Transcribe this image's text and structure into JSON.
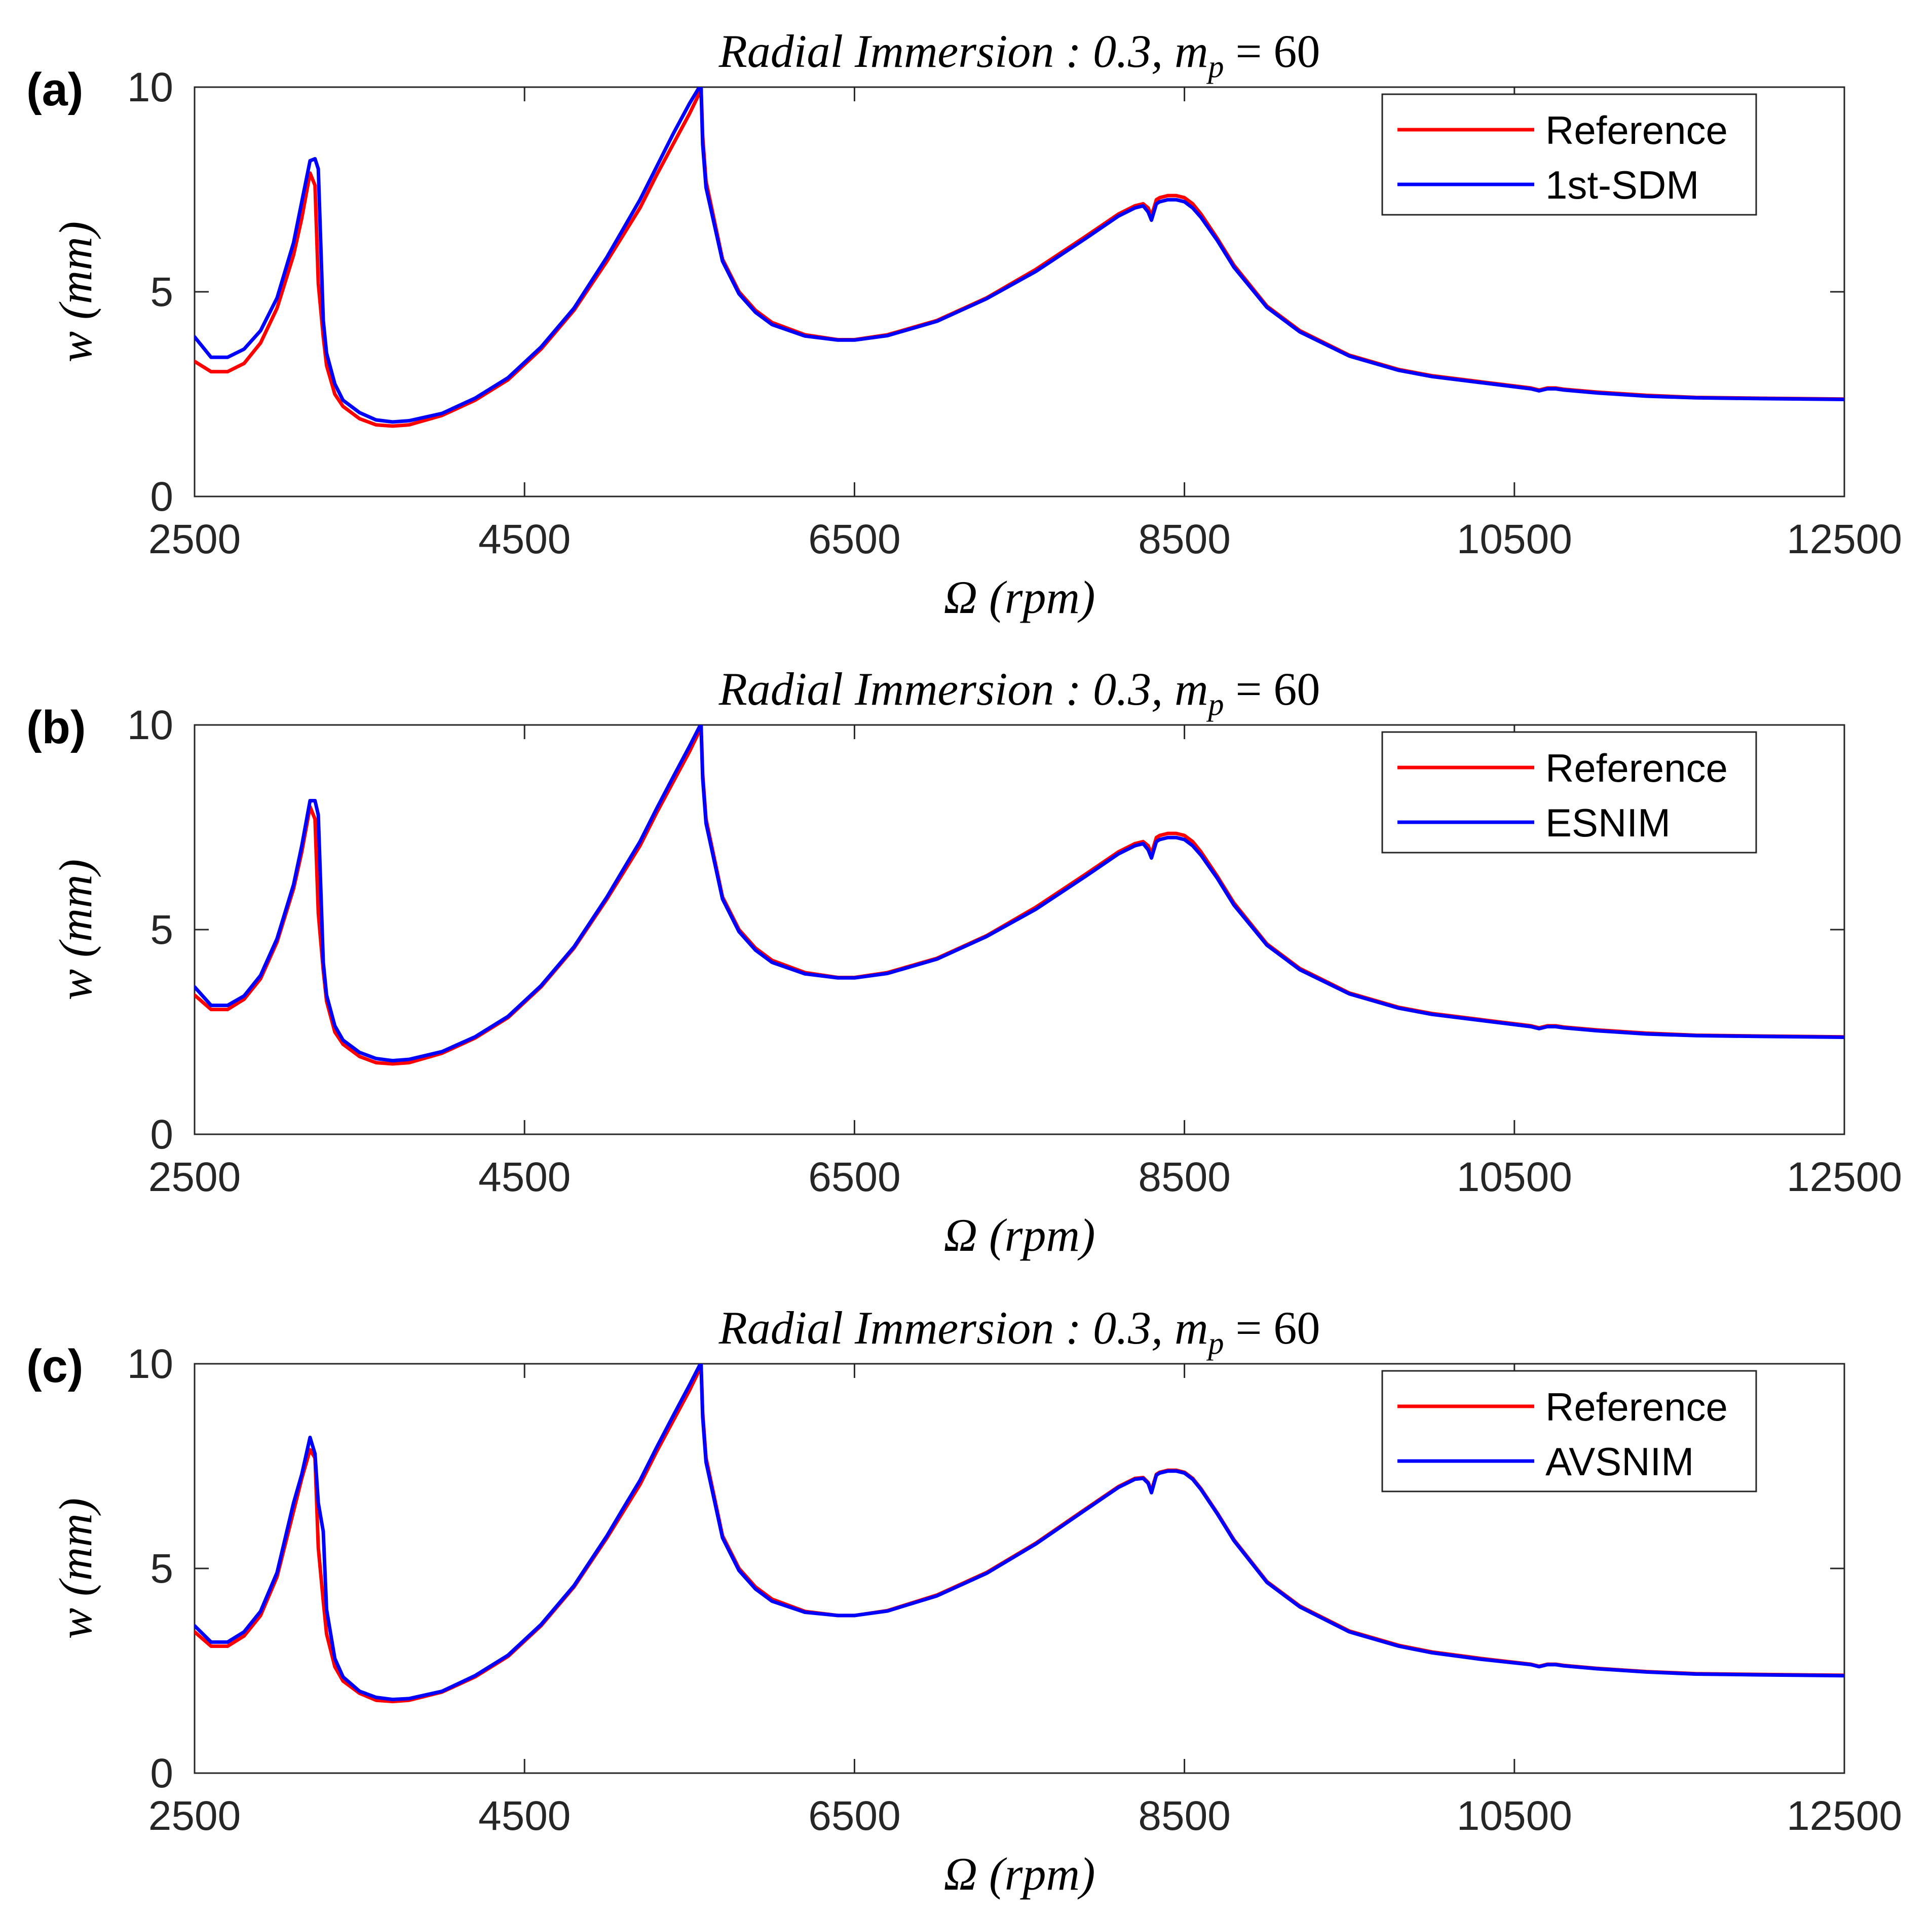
{
  "colors": {
    "reference": "#ff0000",
    "method": "#0000ff",
    "axis": "#262626"
  },
  "chart_data": [
    {
      "type": "line",
      "panel_label": "(a)",
      "title": "Radial Immersion :  0.3,   m",
      "title_sub": "p",
      "title_suffix": " = 60",
      "xlabel": "Ω (rpm)",
      "ylabel": "w (mm)",
      "xlim": [
        2500,
        12500
      ],
      "ylim": [
        0,
        10
      ],
      "xticks": [
        "2500",
        "4500",
        "6500",
        "8500",
        "10500",
        "12500"
      ],
      "yticks": [
        "0",
        "5",
        "10"
      ],
      "legend_position": "top-right",
      "series": [
        {
          "name": "Reference",
          "color": "#ff0000",
          "x": [
            2500,
            2600,
            2700,
            2800,
            2900,
            3000,
            3100,
            3150,
            3200,
            3230,
            3250,
            3280,
            3300,
            3350,
            3400,
            3500,
            3600,
            3700,
            3800,
            4000,
            4200,
            4400,
            4600,
            4800,
            5000,
            5100,
            5200,
            5300,
            5400,
            5500,
            5560,
            5570,
            5580,
            5600,
            5700,
            5800,
            5900,
            6000,
            6200,
            6400,
            6500,
            6700,
            7000,
            7300,
            7600,
            7900,
            8100,
            8200,
            8250,
            8280,
            8300,
            8330,
            8350,
            8400,
            8450,
            8500,
            8550,
            8600,
            8700,
            8800,
            9000,
            9200,
            9500,
            9800,
            10000,
            10300,
            10600,
            10650,
            10700,
            10750,
            10800,
            11000,
            11300,
            11600,
            12000,
            12500
          ],
          "y": [
            3.3,
            3.05,
            3.05,
            3.25,
            3.75,
            4.6,
            5.9,
            6.8,
            7.9,
            7.6,
            5.2,
            3.9,
            3.2,
            2.5,
            2.2,
            1.9,
            1.75,
            1.72,
            1.75,
            1.98,
            2.35,
            2.85,
            3.6,
            4.55,
            5.75,
            6.4,
            7.05,
            7.85,
            8.6,
            9.35,
            9.85,
            10.0,
            8.8,
            7.7,
            5.8,
            5.0,
            4.55,
            4.25,
            3.95,
            3.83,
            3.83,
            3.95,
            4.3,
            4.85,
            5.55,
            6.35,
            6.9,
            7.1,
            7.15,
            7.05,
            6.85,
            7.25,
            7.3,
            7.35,
            7.35,
            7.3,
            7.15,
            6.9,
            6.3,
            5.65,
            4.65,
            4.05,
            3.45,
            3.1,
            2.95,
            2.8,
            2.65,
            2.6,
            2.65,
            2.65,
            2.62,
            2.55,
            2.47,
            2.42,
            2.4,
            2.38
          ]
        },
        {
          "name": "1st-SDM",
          "color": "#0000ff",
          "x": [
            2500,
            2600,
            2700,
            2800,
            2900,
            3000,
            3100,
            3150,
            3200,
            3230,
            3250,
            3280,
            3300,
            3350,
            3400,
            3500,
            3600,
            3700,
            3800,
            4000,
            4200,
            4400,
            4600,
            4800,
            5000,
            5100,
            5200,
            5300,
            5400,
            5500,
            5560,
            5570,
            5580,
            5600,
            5700,
            5800,
            5900,
            6000,
            6200,
            6400,
            6500,
            6700,
            7000,
            7300,
            7600,
            7900,
            8100,
            8200,
            8250,
            8280,
            8300,
            8330,
            8350,
            8400,
            8450,
            8500,
            8550,
            8600,
            8700,
            8800,
            9000,
            9200,
            9500,
            9800,
            10000,
            10300,
            10600,
            10650,
            10700,
            10750,
            10800,
            11000,
            11300,
            11600,
            12000,
            12500
          ],
          "y": [
            3.9,
            3.4,
            3.4,
            3.6,
            4.05,
            4.85,
            6.2,
            7.2,
            8.2,
            8.25,
            8.0,
            4.3,
            3.5,
            2.75,
            2.35,
            2.05,
            1.87,
            1.82,
            1.85,
            2.03,
            2.4,
            2.9,
            3.65,
            4.6,
            5.85,
            6.55,
            7.25,
            8.05,
            8.85,
            9.6,
            10.0,
            10.0,
            8.6,
            7.55,
            5.75,
            4.95,
            4.5,
            4.2,
            3.92,
            3.82,
            3.82,
            3.93,
            4.28,
            4.83,
            5.5,
            6.3,
            6.85,
            7.05,
            7.1,
            6.95,
            6.75,
            7.15,
            7.2,
            7.25,
            7.25,
            7.2,
            7.05,
            6.82,
            6.25,
            5.6,
            4.62,
            4.02,
            3.43,
            3.08,
            2.93,
            2.78,
            2.63,
            2.58,
            2.63,
            2.63,
            2.6,
            2.53,
            2.45,
            2.41,
            2.39,
            2.37
          ]
        }
      ]
    },
    {
      "type": "line",
      "panel_label": "(b)",
      "title": "Radial Immersion :  0.3,   m",
      "title_sub": "p",
      "title_suffix": " = 60",
      "xlabel": "Ω (rpm)",
      "ylabel": "w (mm)",
      "xlim": [
        2500,
        12500
      ],
      "ylim": [
        0,
        10
      ],
      "xticks": [
        "2500",
        "4500",
        "6500",
        "8500",
        "10500",
        "12500"
      ],
      "yticks": [
        "0",
        "5",
        "10"
      ],
      "legend_position": "top-right",
      "series": [
        {
          "name": "Reference",
          "color": "#ff0000",
          "x": [
            2500,
            2600,
            2700,
            2800,
            2900,
            3000,
            3100,
            3150,
            3200,
            3230,
            3250,
            3280,
            3300,
            3350,
            3400,
            3500,
            3600,
            3700,
            3800,
            4000,
            4200,
            4400,
            4600,
            4800,
            5000,
            5100,
            5200,
            5300,
            5400,
            5500,
            5560,
            5570,
            5580,
            5600,
            5700,
            5800,
            5900,
            6000,
            6200,
            6400,
            6500,
            6700,
            7000,
            7300,
            7600,
            7900,
            8100,
            8200,
            8250,
            8280,
            8300,
            8330,
            8350,
            8400,
            8450,
            8500,
            8550,
            8600,
            8700,
            8800,
            9000,
            9200,
            9500,
            9800,
            10000,
            10300,
            10600,
            10650,
            10700,
            10750,
            10800,
            11000,
            11300,
            11600,
            12000,
            12500
          ],
          "y": [
            3.4,
            3.05,
            3.05,
            3.3,
            3.8,
            4.7,
            6.0,
            6.9,
            8.0,
            7.7,
            5.4,
            4.0,
            3.25,
            2.5,
            2.2,
            1.9,
            1.75,
            1.72,
            1.75,
            1.98,
            2.35,
            2.85,
            3.6,
            4.55,
            5.75,
            6.4,
            7.05,
            7.85,
            8.6,
            9.35,
            9.85,
            10.0,
            8.8,
            7.7,
            5.8,
            5.0,
            4.55,
            4.25,
            3.95,
            3.83,
            3.83,
            3.95,
            4.3,
            4.85,
            5.55,
            6.35,
            6.9,
            7.1,
            7.15,
            7.05,
            6.85,
            7.25,
            7.3,
            7.35,
            7.35,
            7.3,
            7.15,
            6.9,
            6.3,
            5.65,
            4.65,
            4.05,
            3.45,
            3.1,
            2.95,
            2.8,
            2.65,
            2.6,
            2.65,
            2.65,
            2.62,
            2.55,
            2.47,
            2.42,
            2.4,
            2.38
          ]
        },
        {
          "name": "ESNIM",
          "color": "#0000ff",
          "x": [
            2500,
            2600,
            2700,
            2800,
            2900,
            3000,
            3100,
            3150,
            3200,
            3230,
            3250,
            3280,
            3300,
            3350,
            3400,
            3500,
            3600,
            3700,
            3800,
            4000,
            4200,
            4400,
            4600,
            4800,
            5000,
            5100,
            5200,
            5300,
            5400,
            5500,
            5560,
            5570,
            5580,
            5600,
            5700,
            5800,
            5900,
            6000,
            6200,
            6400,
            6500,
            6700,
            7000,
            7300,
            7600,
            7900,
            8100,
            8200,
            8250,
            8280,
            8300,
            8330,
            8350,
            8400,
            8450,
            8500,
            8550,
            8600,
            8700,
            8800,
            9000,
            9200,
            9500,
            9800,
            10000,
            10300,
            10600,
            10650,
            10700,
            10750,
            10800,
            11000,
            11300,
            11600,
            12000,
            12500
          ],
          "y": [
            3.6,
            3.15,
            3.15,
            3.38,
            3.88,
            4.78,
            6.1,
            7.05,
            8.15,
            8.15,
            7.8,
            4.2,
            3.4,
            2.65,
            2.3,
            2.0,
            1.85,
            1.8,
            1.83,
            2.02,
            2.38,
            2.88,
            3.63,
            4.58,
            5.8,
            6.48,
            7.15,
            7.95,
            8.72,
            9.48,
            9.95,
            10.0,
            8.7,
            7.6,
            5.75,
            4.95,
            4.5,
            4.2,
            3.92,
            3.82,
            3.82,
            3.93,
            4.28,
            4.83,
            5.5,
            6.3,
            6.85,
            7.05,
            7.1,
            6.95,
            6.75,
            7.15,
            7.2,
            7.25,
            7.25,
            7.2,
            7.05,
            6.82,
            6.25,
            5.6,
            4.62,
            4.02,
            3.43,
            3.08,
            2.93,
            2.78,
            2.63,
            2.58,
            2.63,
            2.63,
            2.6,
            2.53,
            2.45,
            2.41,
            2.39,
            2.37
          ]
        }
      ]
    },
    {
      "type": "line",
      "panel_label": "(c)",
      "title": "Radial Immersion :  0.3,   m",
      "title_sub": "p",
      "title_suffix": " = 60",
      "xlabel": "Ω (rpm)",
      "ylabel": "w (mm)",
      "xlim": [
        2500,
        12500
      ],
      "ylim": [
        0,
        10
      ],
      "xticks": [
        "2500",
        "4500",
        "6500",
        "8500",
        "10500",
        "12500"
      ],
      "yticks": [
        "0",
        "5",
        "10"
      ],
      "legend_position": "top-right",
      "series": [
        {
          "name": "Reference",
          "color": "#ff0000",
          "x": [
            2500,
            2600,
            2700,
            2800,
            2900,
            3000,
            3100,
            3150,
            3200,
            3230,
            3250,
            3280,
            3300,
            3350,
            3400,
            3500,
            3600,
            3700,
            3800,
            4000,
            4200,
            4400,
            4600,
            4800,
            5000,
            5100,
            5200,
            5300,
            5400,
            5500,
            5560,
            5570,
            5580,
            5600,
            5700,
            5800,
            5900,
            6000,
            6200,
            6400,
            6500,
            6700,
            7000,
            7300,
            7600,
            7900,
            8100,
            8200,
            8250,
            8280,
            8300,
            8330,
            8350,
            8400,
            8450,
            8500,
            8550,
            8600,
            8700,
            8800,
            9000,
            9200,
            9500,
            9800,
            10000,
            10300,
            10600,
            10650,
            10700,
            10750,
            10800,
            11000,
            11300,
            11600,
            12000,
            12500
          ],
          "y": [
            3.45,
            3.1,
            3.1,
            3.35,
            3.85,
            4.8,
            6.4,
            7.2,
            7.9,
            7.7,
            5.5,
            4.2,
            3.4,
            2.6,
            2.25,
            1.95,
            1.78,
            1.75,
            1.78,
            1.98,
            2.35,
            2.85,
            3.6,
            4.55,
            5.75,
            6.4,
            7.05,
            7.85,
            8.6,
            9.35,
            9.85,
            10.0,
            8.8,
            7.7,
            5.8,
            5.0,
            4.55,
            4.25,
            3.95,
            3.85,
            3.85,
            3.97,
            4.35,
            4.9,
            5.62,
            6.45,
            7.0,
            7.2,
            7.22,
            7.1,
            6.9,
            7.3,
            7.35,
            7.4,
            7.4,
            7.35,
            7.2,
            6.95,
            6.35,
            5.7,
            4.68,
            4.08,
            3.47,
            3.12,
            2.96,
            2.8,
            2.66,
            2.61,
            2.66,
            2.66,
            2.63,
            2.56,
            2.48,
            2.43,
            2.41,
            2.39
          ]
        },
        {
          "name": "AVSNIM",
          "color": "#0000ff",
          "x": [
            2500,
            2600,
            2700,
            2800,
            2900,
            3000,
            3100,
            3150,
            3200,
            3230,
            3250,
            3280,
            3300,
            3350,
            3400,
            3500,
            3600,
            3700,
            3800,
            4000,
            4200,
            4400,
            4600,
            4800,
            5000,
            5100,
            5200,
            5300,
            5400,
            5500,
            5560,
            5570,
            5580,
            5600,
            5700,
            5800,
            5900,
            6000,
            6200,
            6400,
            6500,
            6700,
            7000,
            7300,
            7600,
            7900,
            8100,
            8200,
            8250,
            8280,
            8300,
            8330,
            8350,
            8400,
            8450,
            8500,
            8550,
            8600,
            8700,
            8800,
            9000,
            9200,
            9500,
            9800,
            10000,
            10300,
            10600,
            10650,
            10700,
            10750,
            10800,
            11000,
            11300,
            11600,
            12000,
            12500
          ],
          "y": [
            3.6,
            3.2,
            3.2,
            3.45,
            3.95,
            4.9,
            6.6,
            7.3,
            8.2,
            7.8,
            6.6,
            5.9,
            4.0,
            2.8,
            2.35,
            2.0,
            1.85,
            1.8,
            1.82,
            2.0,
            2.38,
            2.88,
            3.63,
            4.58,
            5.8,
            6.48,
            7.15,
            7.95,
            8.72,
            9.48,
            9.95,
            10.0,
            8.7,
            7.6,
            5.75,
            4.95,
            4.5,
            4.2,
            3.93,
            3.85,
            3.85,
            3.96,
            4.33,
            4.88,
            5.6,
            6.43,
            6.98,
            7.18,
            7.2,
            7.08,
            6.85,
            7.28,
            7.33,
            7.38,
            7.38,
            7.33,
            7.18,
            6.93,
            6.33,
            5.68,
            4.66,
            4.06,
            3.45,
            3.1,
            2.94,
            2.78,
            2.65,
            2.6,
            2.65,
            2.65,
            2.62,
            2.55,
            2.47,
            2.42,
            2.4,
            2.38
          ]
        }
      ]
    }
  ]
}
